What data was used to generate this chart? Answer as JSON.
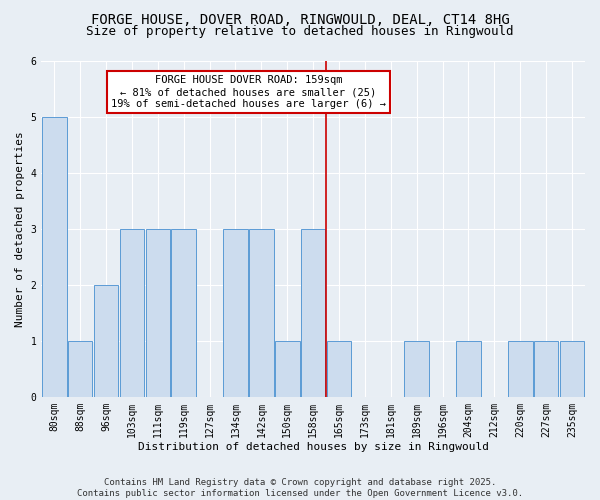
{
  "title_line1": "FORGE HOUSE, DOVER ROAD, RINGWOULD, DEAL, CT14 8HG",
  "title_line2": "Size of property relative to detached houses in Ringwould",
  "xlabel": "Distribution of detached houses by size in Ringwould",
  "ylabel": "Number of detached properties",
  "categories": [
    "80sqm",
    "88sqm",
    "96sqm",
    "103sqm",
    "111sqm",
    "119sqm",
    "127sqm",
    "134sqm",
    "142sqm",
    "150sqm",
    "158sqm",
    "165sqm",
    "173sqm",
    "181sqm",
    "189sqm",
    "196sqm",
    "204sqm",
    "212sqm",
    "220sqm",
    "227sqm",
    "235sqm"
  ],
  "values": [
    5,
    1,
    2,
    3,
    3,
    3,
    0,
    3,
    3,
    1,
    3,
    1,
    0,
    0,
    1,
    0,
    1,
    0,
    1,
    1,
    1
  ],
  "bar_color": "#ccdcee",
  "bar_edge_color": "#5b9bd5",
  "vline_x": 10.5,
  "annotation_text": "FORGE HOUSE DOVER ROAD: 159sqm\n← 81% of detached houses are smaller (25)\n19% of semi-detached houses are larger (6) →",
  "annotation_box_color": "#ffffff",
  "annotation_box_edge": "#cc0000",
  "vline_color": "#cc0000",
  "ylim": [
    0,
    6
  ],
  "yticks": [
    0,
    1,
    2,
    3,
    4,
    5,
    6
  ],
  "bg_color": "#e8eef4",
  "grid_color": "#ffffff",
  "footer_text": "Contains HM Land Registry data © Crown copyright and database right 2025.\nContains public sector information licensed under the Open Government Licence v3.0.",
  "title_fontsize": 10,
  "subtitle_fontsize": 9,
  "axis_label_fontsize": 8,
  "tick_fontsize": 7,
  "annotation_fontsize": 7.5,
  "footer_fontsize": 6.5
}
